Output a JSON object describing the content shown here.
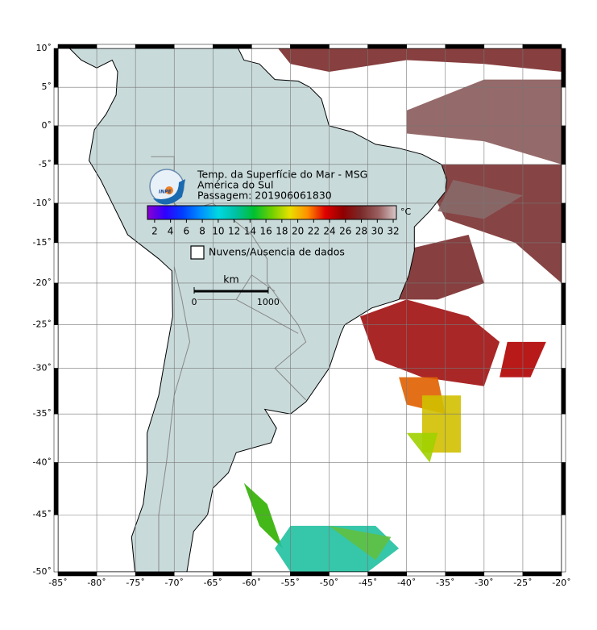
{
  "map": {
    "title": "Temp. da Superfície do Mar - MSG",
    "region": "América do Sul",
    "pass": "Passagem: 201906061830",
    "logo_text": "INPE",
    "projection": "mercator",
    "lonlim": [
      -85,
      -20
    ],
    "latlim": [
      -50,
      10
    ],
    "grid": true,
    "lon_ticks": [
      {
        "value": -85,
        "label": "-85˚"
      },
      {
        "value": -80,
        "label": "-80˚"
      },
      {
        "value": -75,
        "label": "-75˚"
      },
      {
        "value": -70,
        "label": "-70˚"
      },
      {
        "value": -65,
        "label": "-65˚"
      },
      {
        "value": -60,
        "label": "-60˚"
      },
      {
        "value": -55,
        "label": "-55˚"
      },
      {
        "value": -50,
        "label": "-50˚"
      },
      {
        "value": -45,
        "label": "-45˚"
      },
      {
        "value": -40,
        "label": "-40˚"
      },
      {
        "value": -35,
        "label": "-35˚"
      },
      {
        "value": -30,
        "label": "-30˚"
      },
      {
        "value": -25,
        "label": "-25˚"
      },
      {
        "value": -20,
        "label": "-20˚"
      }
    ],
    "lat_ticks": [
      {
        "value": 10,
        "label": "10˚"
      },
      {
        "value": 5,
        "label": "5˚"
      },
      {
        "value": 0,
        "label": "0˚"
      },
      {
        "value": -5,
        "label": "-5˚"
      },
      {
        "value": -10,
        "label": "-10˚"
      },
      {
        "value": -15,
        "label": "-15˚"
      },
      {
        "value": -20,
        "label": "-20˚"
      },
      {
        "value": -25,
        "label": "-25˚"
      },
      {
        "value": -30,
        "label": "-30˚"
      },
      {
        "value": -35,
        "label": "-35˚"
      },
      {
        "value": -40,
        "label": "-40˚"
      },
      {
        "value": -45,
        "label": "-45˚"
      },
      {
        "value": -50,
        "label": "-50˚"
      }
    ],
    "colorbar": {
      "range": [
        1.1,
        32.4
      ],
      "ticks": [
        2,
        4,
        6,
        8,
        10,
        12,
        14,
        16,
        18,
        20,
        22,
        24,
        26,
        28,
        30,
        32
      ],
      "unit": "°C",
      "colors": [
        "#8a00d0",
        "#3000ff",
        "#0040ff",
        "#0090ff",
        "#00d8e0",
        "#00c0a0",
        "#00c030",
        "#70d000",
        "#e8e000",
        "#ff9000",
        "#e00000",
        "#900000",
        "#7a2a2a",
        "#9a6060",
        "#d8c8c8"
      ]
    },
    "legend": "Nuvens/Ausencia de dados",
    "scale": {
      "unit": "km",
      "ticks": [
        0,
        1000
      ]
    }
  }
}
